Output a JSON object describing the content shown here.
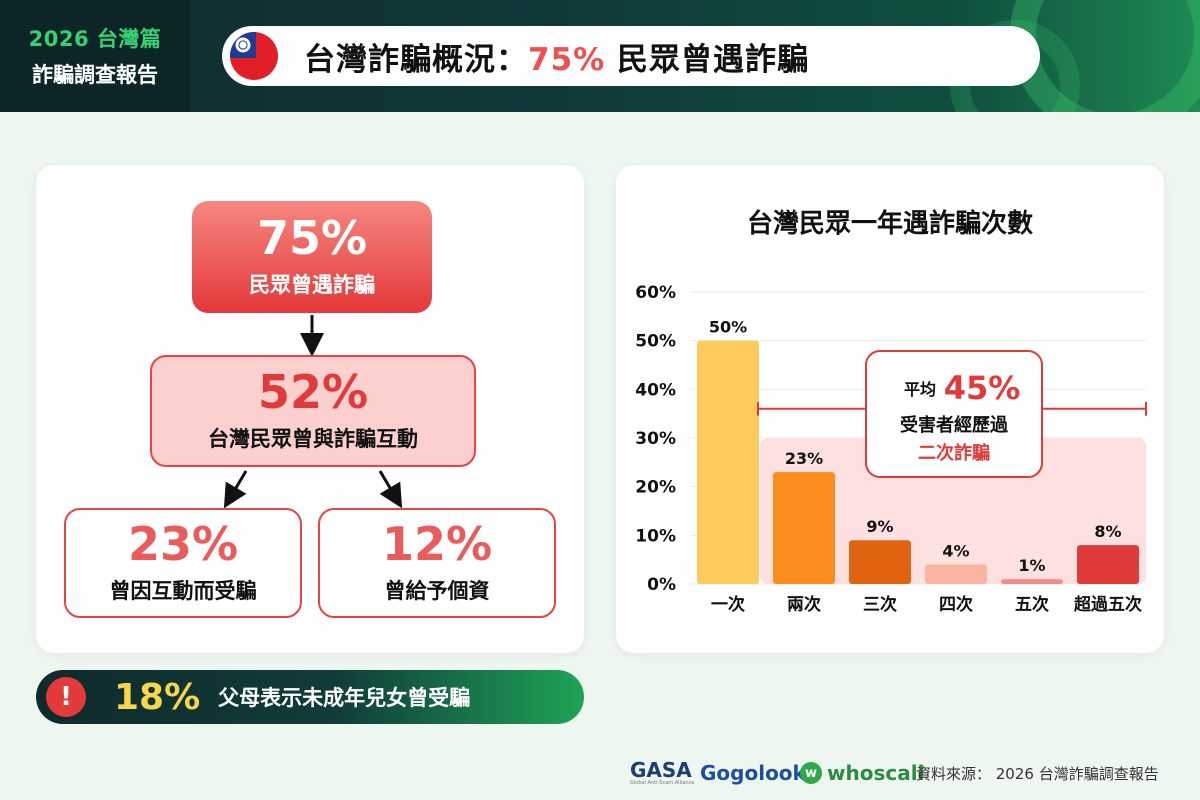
{
  "header": {
    "brand_line1": "2026 台灣篇",
    "brand_line2": "詐騙調查報告",
    "title_main": "台灣詐騙概況：",
    "title_highlight": "75%",
    "title_tail": " 民眾曾遇詐騙",
    "flag_icon": "taiwan-flag-icon"
  },
  "flow": {
    "top": {
      "pct": "75%",
      "label": "民眾曾遇詐騙"
    },
    "middle": {
      "pct": "52%",
      "label": "台灣民眾曾與詐騙互動"
    },
    "left": {
      "pct": "23%",
      "label": "曾因互動而受騙"
    },
    "right": {
      "pct": "12%",
      "label": "曾給予個資"
    }
  },
  "alert": {
    "icon": "!",
    "pct": "18%",
    "text": "父母表示未成年兒女曾受騙"
  },
  "chart_data": {
    "type": "bar",
    "title": "台灣民眾一年遇詐騙次數",
    "categories": [
      "一次",
      "兩次",
      "三次",
      "四次",
      "五次",
      "超過五次"
    ],
    "values": [
      50,
      23,
      9,
      4,
      1,
      8
    ],
    "value_labels": [
      "50%",
      "23%",
      "9%",
      "4%",
      "1%",
      "8%"
    ],
    "yticks": [
      "0%",
      "10%",
      "20%",
      "30%",
      "40%",
      "50%",
      "60%"
    ],
    "ylim": [
      0,
      60
    ],
    "bar_colors": [
      "#fdca5c",
      "#fb8d1e",
      "#e0640f",
      "#fbb3a2",
      "#f48c87",
      "#e03a3a"
    ],
    "annotation": {
      "prefix": "平均",
      "pct": "45%",
      "line1": "受害者經歷過",
      "line2": "二次詐騙"
    }
  },
  "footer": {
    "logo_gasa": "GASA",
    "logo_gasa_sub": "Global Anti-Scam Alliance",
    "logo_gogolook": "Gogolook",
    "logo_whoscall": "whoscall",
    "source": "資料來源： 2026 台灣詐騙調查報告"
  }
}
